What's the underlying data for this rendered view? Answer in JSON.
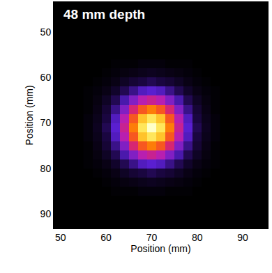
{
  "chart_data": {
    "type": "heatmap",
    "title": "48 mm depth",
    "xlabel": "Position (mm)",
    "ylabel": "Position (mm)",
    "xlim": [
      48.5,
      95.5
    ],
    "ylim": [
      93.2,
      43.4
    ],
    "xticks": [
      50,
      60,
      70,
      80,
      90
    ],
    "yticks": [
      50,
      60,
      70,
      80,
      90
    ],
    "x": [
      56,
      58,
      60,
      62,
      64,
      66,
      68,
      70,
      72,
      74,
      76,
      78,
      80,
      82,
      84
    ],
    "y": [
      57,
      59,
      61,
      63,
      65,
      67,
      69,
      71,
      73,
      75,
      77,
      79,
      81,
      83,
      85
    ],
    "z": [
      [
        0,
        0,
        0,
        1,
        1,
        1,
        2,
        2,
        2,
        1,
        1,
        1,
        0,
        0,
        0
      ],
      [
        0,
        0,
        1,
        2,
        3,
        4,
        5,
        6,
        5,
        4,
        3,
        2,
        1,
        0,
        0
      ],
      [
        0,
        1,
        2,
        4,
        7,
        10,
        12,
        14,
        12,
        10,
        7,
        4,
        2,
        1,
        0
      ],
      [
        1,
        2,
        4,
        8,
        14,
        20,
        26,
        28,
        26,
        20,
        14,
        8,
        4,
        2,
        1
      ],
      [
        1,
        3,
        7,
        14,
        24,
        35,
        45,
        49,
        45,
        35,
        24,
        14,
        7,
        3,
        1
      ],
      [
        1,
        4,
        10,
        20,
        35,
        53,
        67,
        73,
        67,
        53,
        35,
        20,
        10,
        4,
        1
      ],
      [
        2,
        5,
        12,
        26,
        45,
        67,
        85,
        92,
        85,
        67,
        45,
        26,
        12,
        5,
        2
      ],
      [
        2,
        6,
        14,
        28,
        49,
        73,
        92,
        100,
        92,
        73,
        49,
        28,
        14,
        6,
        2
      ],
      [
        2,
        5,
        12,
        26,
        45,
        67,
        85,
        92,
        85,
        67,
        45,
        26,
        12,
        5,
        2
      ],
      [
        1,
        4,
        10,
        20,
        35,
        53,
        67,
        73,
        67,
        53,
        35,
        20,
        10,
        4,
        1
      ],
      [
        1,
        3,
        7,
        14,
        24,
        35,
        45,
        49,
        45,
        35,
        24,
        14,
        7,
        3,
        1
      ],
      [
        1,
        2,
        4,
        8,
        14,
        20,
        26,
        28,
        26,
        20,
        14,
        8,
        4,
        2,
        1
      ],
      [
        0,
        1,
        2,
        4,
        7,
        10,
        12,
        14,
        12,
        10,
        7,
        4,
        2,
        1,
        0
      ],
      [
        0,
        0,
        1,
        2,
        3,
        4,
        5,
        6,
        5,
        4,
        3,
        2,
        1,
        0,
        0
      ],
      [
        0,
        0,
        0,
        1,
        1,
        1,
        2,
        2,
        2,
        1,
        1,
        1,
        0,
        0,
        0
      ]
    ]
  }
}
